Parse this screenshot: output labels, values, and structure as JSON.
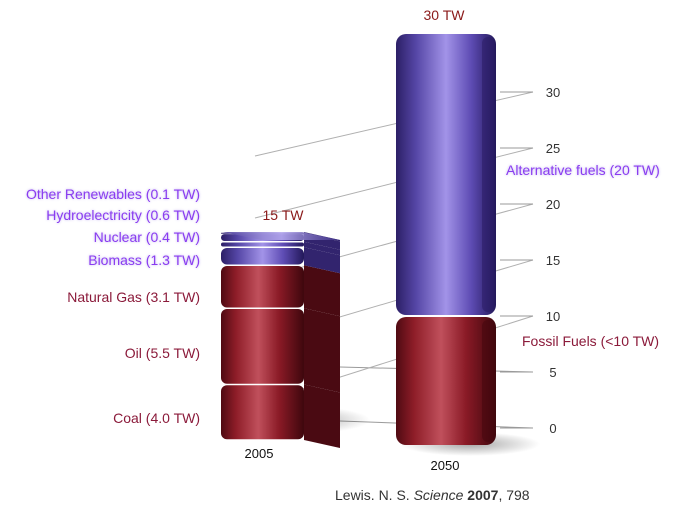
{
  "chart_data": {
    "type": "bar",
    "stacked": true,
    "categories": [
      "2005",
      "2050"
    ],
    "totals": [
      "15 TW",
      "30 TW"
    ],
    "y_ticks": [
      0,
      5,
      10,
      15,
      20,
      25,
      30
    ],
    "ylim": [
      0,
      32
    ],
    "series": [
      {
        "name": "Coal (4.0 TW)",
        "values": [
          4.0,
          null
        ],
        "color": "#8e1d28"
      },
      {
        "name": "Oil (5.5 TW)",
        "values": [
          5.5,
          null
        ],
        "color": "#8e1d28"
      },
      {
        "name": "Natural Gas (3.1 TW)",
        "values": [
          3.1,
          null
        ],
        "color": "#8e1d28"
      },
      {
        "name": "Biomass (1.3 TW)",
        "values": [
          1.3,
          null
        ],
        "color": "#5a4aa8"
      },
      {
        "name": "Nuclear (0.4 TW)",
        "values": [
          0.4,
          null
        ],
        "color": "#5a4aa8"
      },
      {
        "name": "Hydroelectricity (0.6 TW)",
        "values": [
          0.6,
          null
        ],
        "color": "#5a4aa8"
      },
      {
        "name": "Other Renewables (0.1 TW)",
        "values": [
          0.1,
          null
        ],
        "color": "#5a4aa8"
      },
      {
        "name": "Fossil Fuels (<10 TW)",
        "values": [
          null,
          10
        ],
        "color": "#8e1d28"
      },
      {
        "name": "Alternative fuels (20 TW)",
        "values": [
          null,
          20
        ],
        "color": "#6a58c0"
      }
    ],
    "label_colors": {
      "fossil": "#8b1a3a",
      "renewable": "#8a3cf0",
      "total": "#8b1a1a"
    },
    "grid": true
  },
  "caption": {
    "author": "Lewis. N. S.",
    "journal": "Science",
    "year": "2007",
    "page": ", 798"
  }
}
